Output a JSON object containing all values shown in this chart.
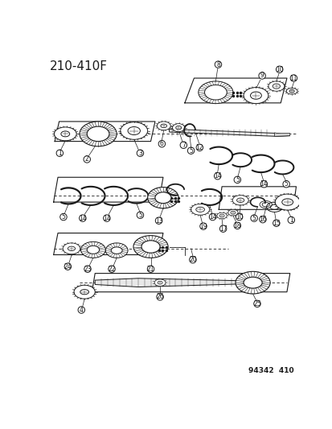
{
  "title": "210-410F",
  "subtitle": "94342  410",
  "bg_color": "#ffffff",
  "lc": "#1a1a1a",
  "title_fontsize": 11,
  "sub_fontsize": 6.5,
  "fig_width": 4.14,
  "fig_height": 5.33,
  "dpi": 100,
  "label_fontsize": 5.5,
  "label_circle_r": 5.5
}
